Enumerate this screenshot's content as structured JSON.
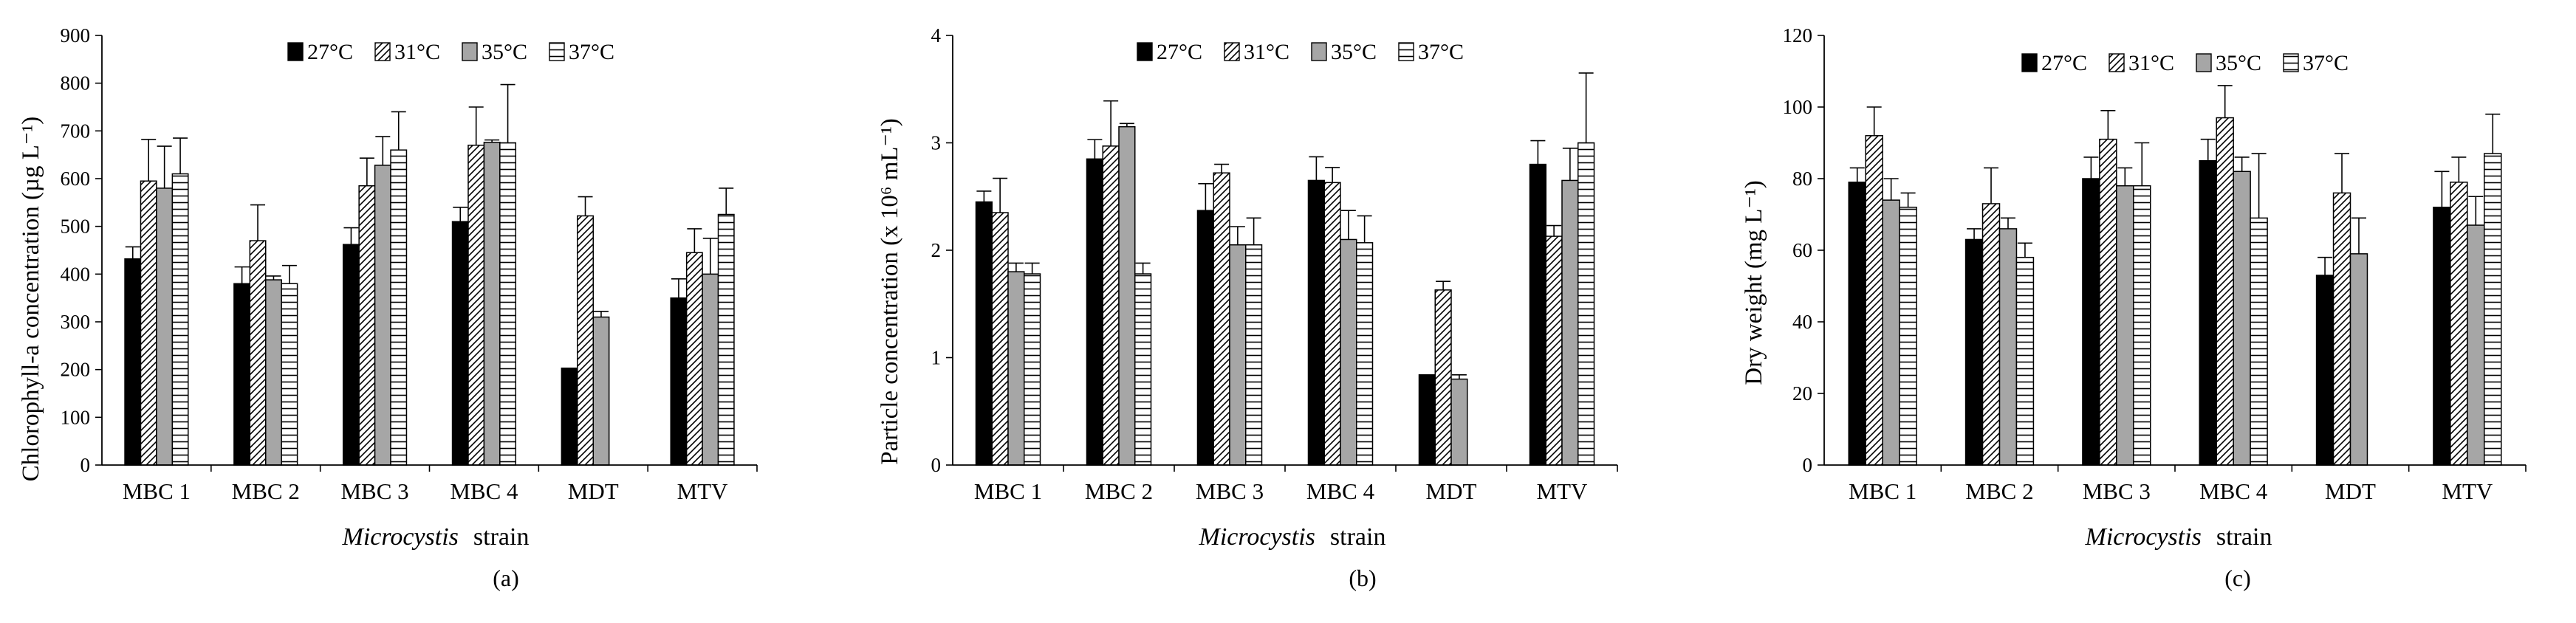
{
  "figure": {
    "legend": [
      "27°C",
      "31°C",
      "35°C",
      "37°C"
    ],
    "series_styles": {
      "27°C": {
        "fill": "#000000",
        "pattern": "solid"
      },
      "31°C": {
        "fill": "#ffffff",
        "pattern": "diagonal-hatch"
      },
      "35°C": {
        "fill": "#a6a6a6",
        "pattern": "solid"
      },
      "37°C": {
        "fill": "#ffffff",
        "pattern": "horizontal-lines"
      }
    }
  },
  "chart_data": [
    {
      "type": "bar",
      "panel_label": "(a)",
      "ylabel": "Chlorophyll-a concentration (µg L⁻¹)",
      "xlabel_italic": "Microcystis",
      "xlabel_rest": "strain",
      "ylim": [
        0,
        900
      ],
      "yticks": [
        0,
        100,
        200,
        300,
        400,
        500,
        600,
        700,
        800,
        900
      ],
      "categories": [
        "MBC 1",
        "MBC 2",
        "MBC 3",
        "MBC 4",
        "MDT",
        "MTV"
      ],
      "series": [
        {
          "name": "27°C",
          "values": [
            432,
            380,
            462,
            510,
            203,
            350
          ],
          "errors": [
            25,
            35,
            35,
            30,
            0,
            40
          ]
        },
        {
          "name": "31°C",
          "values": [
            595,
            470,
            585,
            670,
            522,
            445
          ],
          "errors": [
            87,
            75,
            58,
            80,
            40,
            50
          ]
        },
        {
          "name": "35°C",
          "values": [
            580,
            388,
            628,
            676,
            310,
            400
          ],
          "errors": [
            88,
            8,
            60,
            5,
            12,
            75
          ]
        },
        {
          "name": "37°C",
          "values": [
            610,
            380,
            660,
            675,
            null,
            525
          ],
          "errors": [
            75,
            38,
            80,
            122,
            0,
            55
          ]
        }
      ]
    },
    {
      "type": "bar",
      "panel_label": "(b)",
      "ylabel": "Particle concentration (x 10⁶ mL⁻¹)",
      "xlabel_italic": "Microcystis",
      "xlabel_rest": "strain",
      "ylim": [
        0,
        4
      ],
      "yticks": [
        0,
        1,
        2,
        3,
        4
      ],
      "categories": [
        "MBC 1",
        "MBC 2",
        "MBC 3",
        "MBC 4",
        "MDT",
        "MTV"
      ],
      "series": [
        {
          "name": "27°C",
          "values": [
            2.45,
            2.85,
            2.37,
            2.65,
            0.84,
            2.8
          ],
          "errors": [
            0.1,
            0.18,
            0.25,
            0.22,
            0,
            0.22
          ]
        },
        {
          "name": "31°C",
          "values": [
            2.35,
            2.97,
            2.72,
            2.63,
            1.63,
            2.13
          ],
          "errors": [
            0.32,
            0.42,
            0.08,
            0.14,
            0.08,
            0.1
          ]
        },
        {
          "name": "35°C",
          "values": [
            1.8,
            3.15,
            2.05,
            2.1,
            0.8,
            2.65
          ],
          "errors": [
            0.08,
            0.03,
            0.17,
            0.27,
            0.04,
            0.3
          ]
        },
        {
          "name": "37°C",
          "values": [
            1.78,
            1.78,
            2.05,
            2.07,
            null,
            3.0
          ],
          "errors": [
            0.1,
            0.1,
            0.25,
            0.25,
            0,
            0.65
          ]
        }
      ]
    },
    {
      "type": "bar",
      "panel_label": "(c)",
      "ylabel": "Dry weight (mg L⁻¹)",
      "xlabel_italic": "Microcystis",
      "xlabel_rest": "strain",
      "ylim": [
        0,
        120
      ],
      "yticks": [
        0,
        20,
        40,
        60,
        80,
        100,
        120
      ],
      "categories": [
        "MBC 1",
        "MBC 2",
        "MBC 3",
        "MBC 4",
        "MDT",
        "MTV"
      ],
      "series": [
        {
          "name": "27°C",
          "values": [
            79,
            63,
            80,
            85,
            53,
            72
          ],
          "errors": [
            4,
            3,
            6,
            6,
            5,
            10
          ]
        },
        {
          "name": "31°C",
          "values": [
            92,
            73,
            91,
            97,
            76,
            79
          ],
          "errors": [
            8,
            10,
            8,
            9,
            11,
            7
          ]
        },
        {
          "name": "35°C",
          "values": [
            74,
            66,
            78,
            82,
            59,
            67
          ],
          "errors": [
            6,
            3,
            5,
            4,
            10,
            8
          ]
        },
        {
          "name": "37°C",
          "values": [
            72,
            58,
            78,
            69,
            null,
            87
          ],
          "errors": [
            4,
            4,
            12,
            18,
            0,
            11
          ]
        }
      ]
    }
  ]
}
